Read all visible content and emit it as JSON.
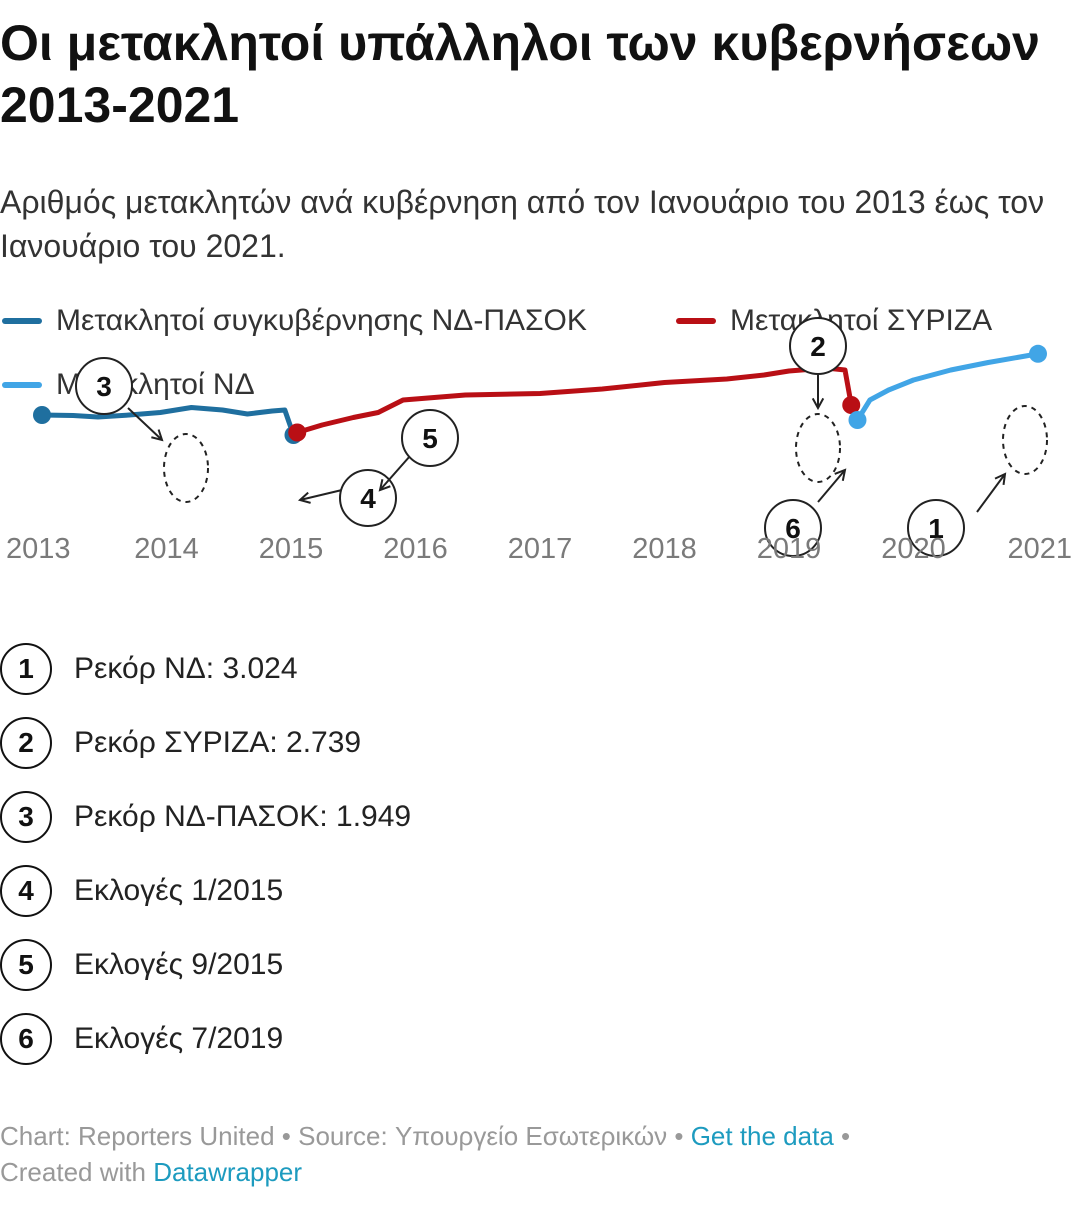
{
  "title": "Οι μετακλητοί υπάλληλοι των κυβερνήσεων 2013-2021",
  "subtitle": "Αριθμός μετακλητών ανά κυβέρνηση από τον Ιανουάριο του 2013 έως τον Ιανουάριο του 2021.",
  "colors": {
    "nd_pasok": "#1f6f9f",
    "syriza": "#b90f15",
    "nd": "#41a5e6"
  },
  "chart_data": {
    "type": "line",
    "x_ticks": [
      "2013",
      "2014",
      "2015",
      "2016",
      "2017",
      "2018",
      "2019",
      "2020",
      "2021"
    ],
    "xlim": [
      2013.0,
      2021.0
    ],
    "ylim": [
      0,
      3100
    ],
    "grid": false,
    "legend_position": "top-left",
    "series": [
      {
        "name": "Μετακλητοί συγκυβέρνησης ΝΔ-ΠΑΣΟΚ",
        "color": "#1f6f9f",
        "points": [
          [
            2013.0,
            1800
          ],
          [
            2013.25,
            1790
          ],
          [
            2013.45,
            1760
          ],
          [
            2013.7,
            1800
          ],
          [
            2013.95,
            1850
          ],
          [
            2014.2,
            1949
          ],
          [
            2014.45,
            1900
          ],
          [
            2014.65,
            1820
          ],
          [
            2014.85,
            1880
          ],
          [
            2014.95,
            1900
          ],
          [
            2015.02,
            1400
          ]
        ]
      },
      {
        "name": "Μετακλητοί ΣΥΡΙΖΑ",
        "color": "#b90f15",
        "points": [
          [
            2015.05,
            1450
          ],
          [
            2015.25,
            1600
          ],
          [
            2015.5,
            1750
          ],
          [
            2015.7,
            1850
          ],
          [
            2015.9,
            2100
          ],
          [
            2016.4,
            2200
          ],
          [
            2017.0,
            2230
          ],
          [
            2017.5,
            2320
          ],
          [
            2018.0,
            2450
          ],
          [
            2018.5,
            2520
          ],
          [
            2018.8,
            2600
          ],
          [
            2019.0,
            2680
          ],
          [
            2019.3,
            2739
          ],
          [
            2019.45,
            2700
          ],
          [
            2019.5,
            2000
          ]
        ]
      },
      {
        "name": "Μετακλητοί ΝΔ",
        "color": "#41a5e6",
        "points": [
          [
            2019.55,
            1700
          ],
          [
            2019.65,
            2100
          ],
          [
            2019.8,
            2300
          ],
          [
            2020.0,
            2500
          ],
          [
            2020.3,
            2700
          ],
          [
            2020.6,
            2850
          ],
          [
            2020.9,
            2980
          ],
          [
            2021.0,
            3024
          ]
        ]
      }
    ],
    "annotations": [
      {
        "id": "1",
        "text": "Ρεκόρ ΝΔ: 3.024"
      },
      {
        "id": "2",
        "text": "Ρεκόρ ΣΥΡΙΖΑ: 2.739"
      },
      {
        "id": "3",
        "text": "Ρεκόρ ΝΔ-ΠΑΣΟΚ: 1.949"
      },
      {
        "id": "4",
        "text": "Εκλογές 1/2015"
      },
      {
        "id": "5",
        "text": "Εκλογές 9/2015"
      },
      {
        "id": "6",
        "text": "Εκλογές 7/2019"
      }
    ]
  },
  "footer": {
    "chart_credit": "Chart: Reporters United",
    "separator": " • ",
    "source": "Source: Υπουργείο Εσωτερικών",
    "get_data": "Get the data",
    "created_with": "Created with ",
    "datawrapper": "Datawrapper"
  }
}
